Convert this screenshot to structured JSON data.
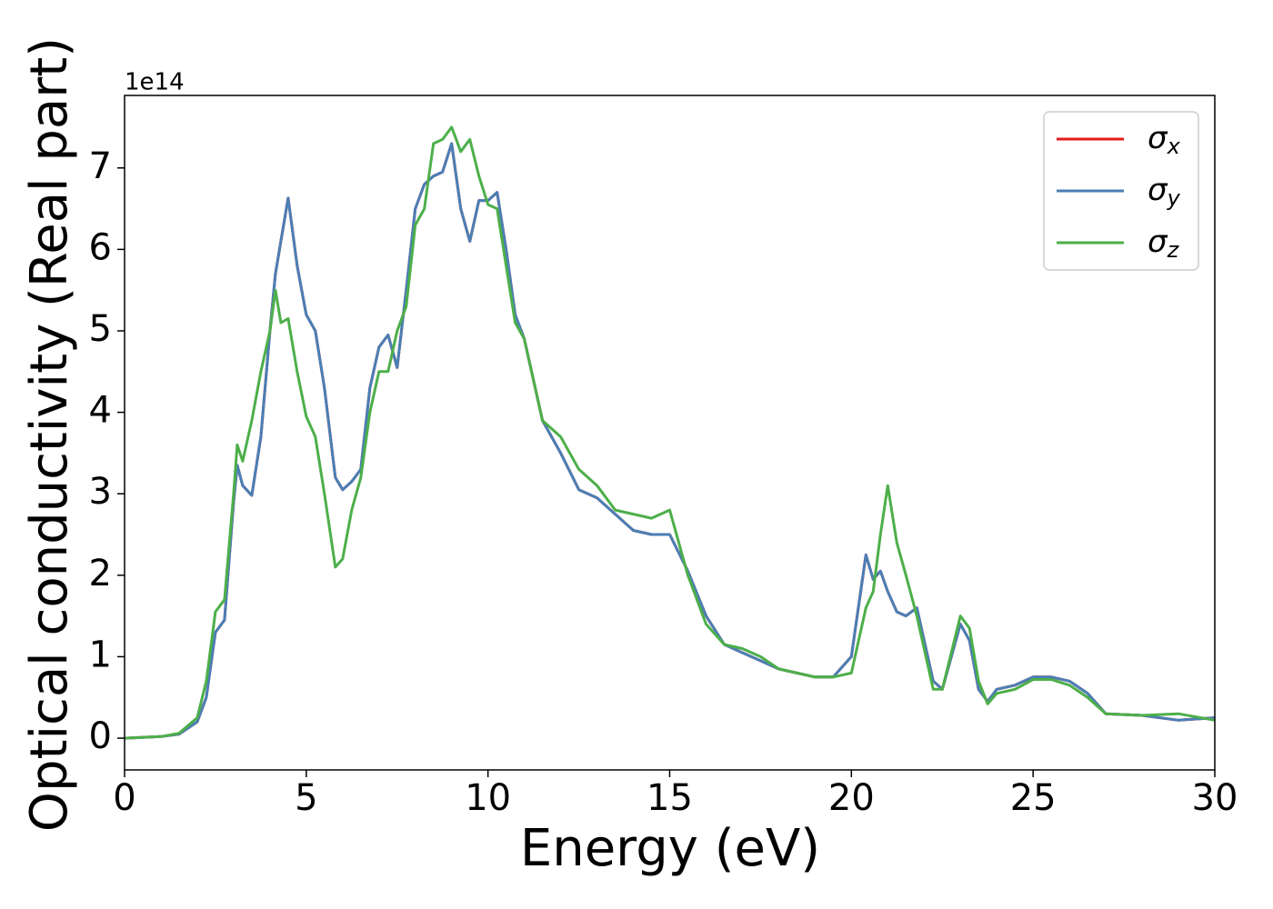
{
  "chart_data": {
    "type": "line",
    "xlabel": "Energy (eV)",
    "ylabel": "Optical conductivity (Real part)",
    "y_offset_label": "1e14",
    "x": [
      0,
      1,
      1.5,
      2,
      2.25,
      2.5,
      2.75,
      3,
      3.1,
      3.25,
      3.5,
      3.75,
      4,
      4.15,
      4.3,
      4.5,
      4.75,
      5,
      5.25,
      5.5,
      5.8,
      6,
      6.25,
      6.5,
      6.75,
      7,
      7.25,
      7.5,
      7.75,
      8,
      8.25,
      8.5,
      8.75,
      9,
      9.25,
      9.5,
      9.75,
      10,
      10.25,
      10.5,
      10.75,
      11,
      11.5,
      12,
      12.5,
      13,
      13.5,
      14,
      14.5,
      15,
      15.5,
      16,
      16.5,
      17,
      17.5,
      18,
      18.5,
      19,
      19.5,
      20,
      20.4,
      20.6,
      20.8,
      21,
      21.25,
      21.5,
      21.8,
      22,
      22.25,
      22.5,
      23,
      23.25,
      23.5,
      23.75,
      24,
      24.5,
      25,
      25.5,
      26,
      26.5,
      27,
      28,
      29,
      30
    ],
    "series": [
      {
        "name": "σx",
        "color": "#e41a1c",
        "values": [
          0,
          0.02,
          0.05,
          0.2,
          0.5,
          1.3,
          1.45,
          2.9,
          3.35,
          3.1,
          2.98,
          3.7,
          5.0,
          5.7,
          6.1,
          6.63,
          5.8,
          5.2,
          5.0,
          4.3,
          3.2,
          3.05,
          3.15,
          3.3,
          4.3,
          4.8,
          4.95,
          4.55,
          5.5,
          6.5,
          6.8,
          6.9,
          6.95,
          7.3,
          6.5,
          6.1,
          6.6,
          6.6,
          6.7,
          6.0,
          5.2,
          4.9,
          3.9,
          3.5,
          3.05,
          2.95,
          2.75,
          2.55,
          2.5,
          2.5,
          2.05,
          1.5,
          1.15,
          1.05,
          0.95,
          0.85,
          0.8,
          0.75,
          0.75,
          1.0,
          2.25,
          1.95,
          2.05,
          1.8,
          1.55,
          1.5,
          1.6,
          1.2,
          0.7,
          0.6,
          1.4,
          1.2,
          0.6,
          0.45,
          0.6,
          0.65,
          0.75,
          0.75,
          0.7,
          0.55,
          0.3,
          0.28,
          0.22,
          0.25
        ]
      },
      {
        "name": "σy",
        "color": "#4a7fb5",
        "values": [
          0,
          0.02,
          0.05,
          0.2,
          0.5,
          1.3,
          1.45,
          2.9,
          3.35,
          3.1,
          2.98,
          3.7,
          5.0,
          5.7,
          6.1,
          6.63,
          5.8,
          5.2,
          5.0,
          4.3,
          3.2,
          3.05,
          3.15,
          3.3,
          4.3,
          4.8,
          4.95,
          4.55,
          5.5,
          6.5,
          6.8,
          6.9,
          6.95,
          7.3,
          6.5,
          6.1,
          6.6,
          6.6,
          6.7,
          6.0,
          5.2,
          4.9,
          3.9,
          3.5,
          3.05,
          2.95,
          2.75,
          2.55,
          2.5,
          2.5,
          2.05,
          1.5,
          1.15,
          1.05,
          0.95,
          0.85,
          0.8,
          0.75,
          0.75,
          1.0,
          2.25,
          1.95,
          2.05,
          1.8,
          1.55,
          1.5,
          1.6,
          1.2,
          0.7,
          0.6,
          1.4,
          1.2,
          0.6,
          0.45,
          0.6,
          0.65,
          0.75,
          0.75,
          0.7,
          0.55,
          0.3,
          0.28,
          0.22,
          0.25
        ]
      },
      {
        "name": "σz",
        "color": "#4daf4a",
        "values": [
          0,
          0.02,
          0.06,
          0.25,
          0.7,
          1.55,
          1.7,
          3.0,
          3.6,
          3.4,
          3.9,
          4.5,
          5.0,
          5.5,
          5.1,
          5.15,
          4.5,
          3.95,
          3.7,
          3.0,
          2.1,
          2.2,
          2.8,
          3.2,
          4.0,
          4.5,
          4.5,
          5.0,
          5.3,
          6.3,
          6.5,
          7.3,
          7.35,
          7.5,
          7.2,
          7.35,
          6.9,
          6.55,
          6.5,
          5.8,
          5.1,
          4.9,
          3.9,
          3.7,
          3.3,
          3.1,
          2.8,
          2.75,
          2.7,
          2.8,
          2.0,
          1.4,
          1.15,
          1.1,
          1.0,
          0.85,
          0.8,
          0.75,
          0.75,
          0.8,
          1.6,
          1.8,
          2.5,
          3.1,
          2.4,
          2.0,
          1.5,
          1.1,
          0.6,
          0.6,
          1.5,
          1.35,
          0.7,
          0.42,
          0.55,
          0.6,
          0.72,
          0.72,
          0.65,
          0.5,
          0.3,
          0.28,
          0.3,
          0.22
        ]
      }
    ],
    "xlim": [
      0,
      30
    ],
    "xticks": [
      0,
      5,
      10,
      15,
      20,
      25,
      30
    ],
    "ylim": [
      -0.39,
      7.89
    ],
    "yticks": [
      0,
      1,
      2,
      3,
      4,
      5,
      6,
      7
    ],
    "grid": false,
    "legend": "upper right"
  }
}
